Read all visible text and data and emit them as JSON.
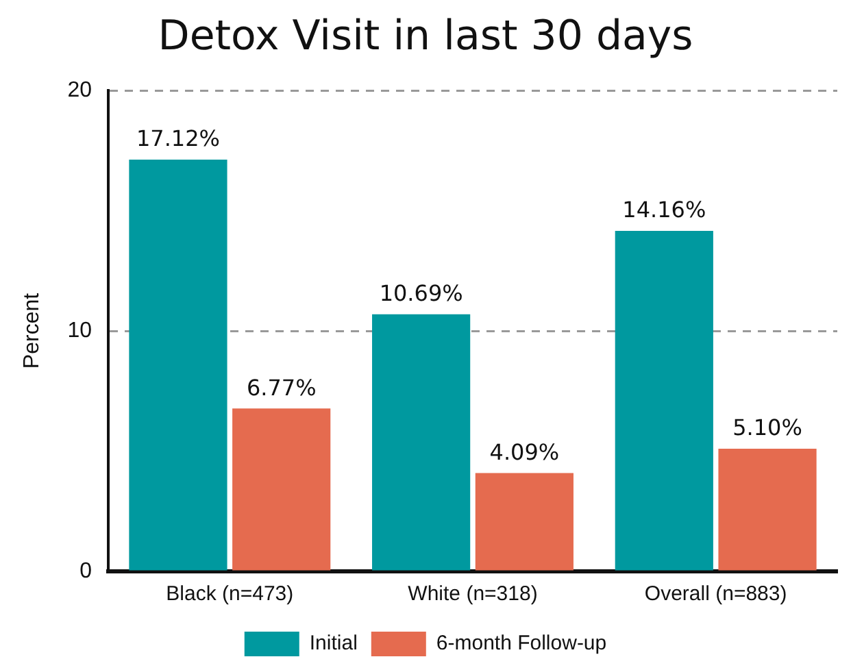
{
  "chart_data": {
    "type": "bar",
    "title": "Detox Visit in last 30 days",
    "ylabel": "Percent",
    "categories": [
      "Black (n=473)",
      "White (n=318)",
      "Overall (n=883)"
    ],
    "series": [
      {
        "name": "Initial",
        "color": "#00999f",
        "values": [
          17.12,
          10.69,
          14.16
        ],
        "value_labels": [
          "17.12%",
          "10.69%",
          "14.16%"
        ]
      },
      {
        "name": "6-month Follow-up",
        "color": "#e56b4f",
        "values": [
          6.77,
          4.09,
          5.1
        ],
        "value_labels": [
          "6.77%",
          "4.09%",
          "5.10%"
        ]
      }
    ],
    "ylim": [
      0,
      20
    ],
    "yticks": [
      0,
      10,
      20
    ],
    "grid": "y",
    "legend": "bottom"
  }
}
